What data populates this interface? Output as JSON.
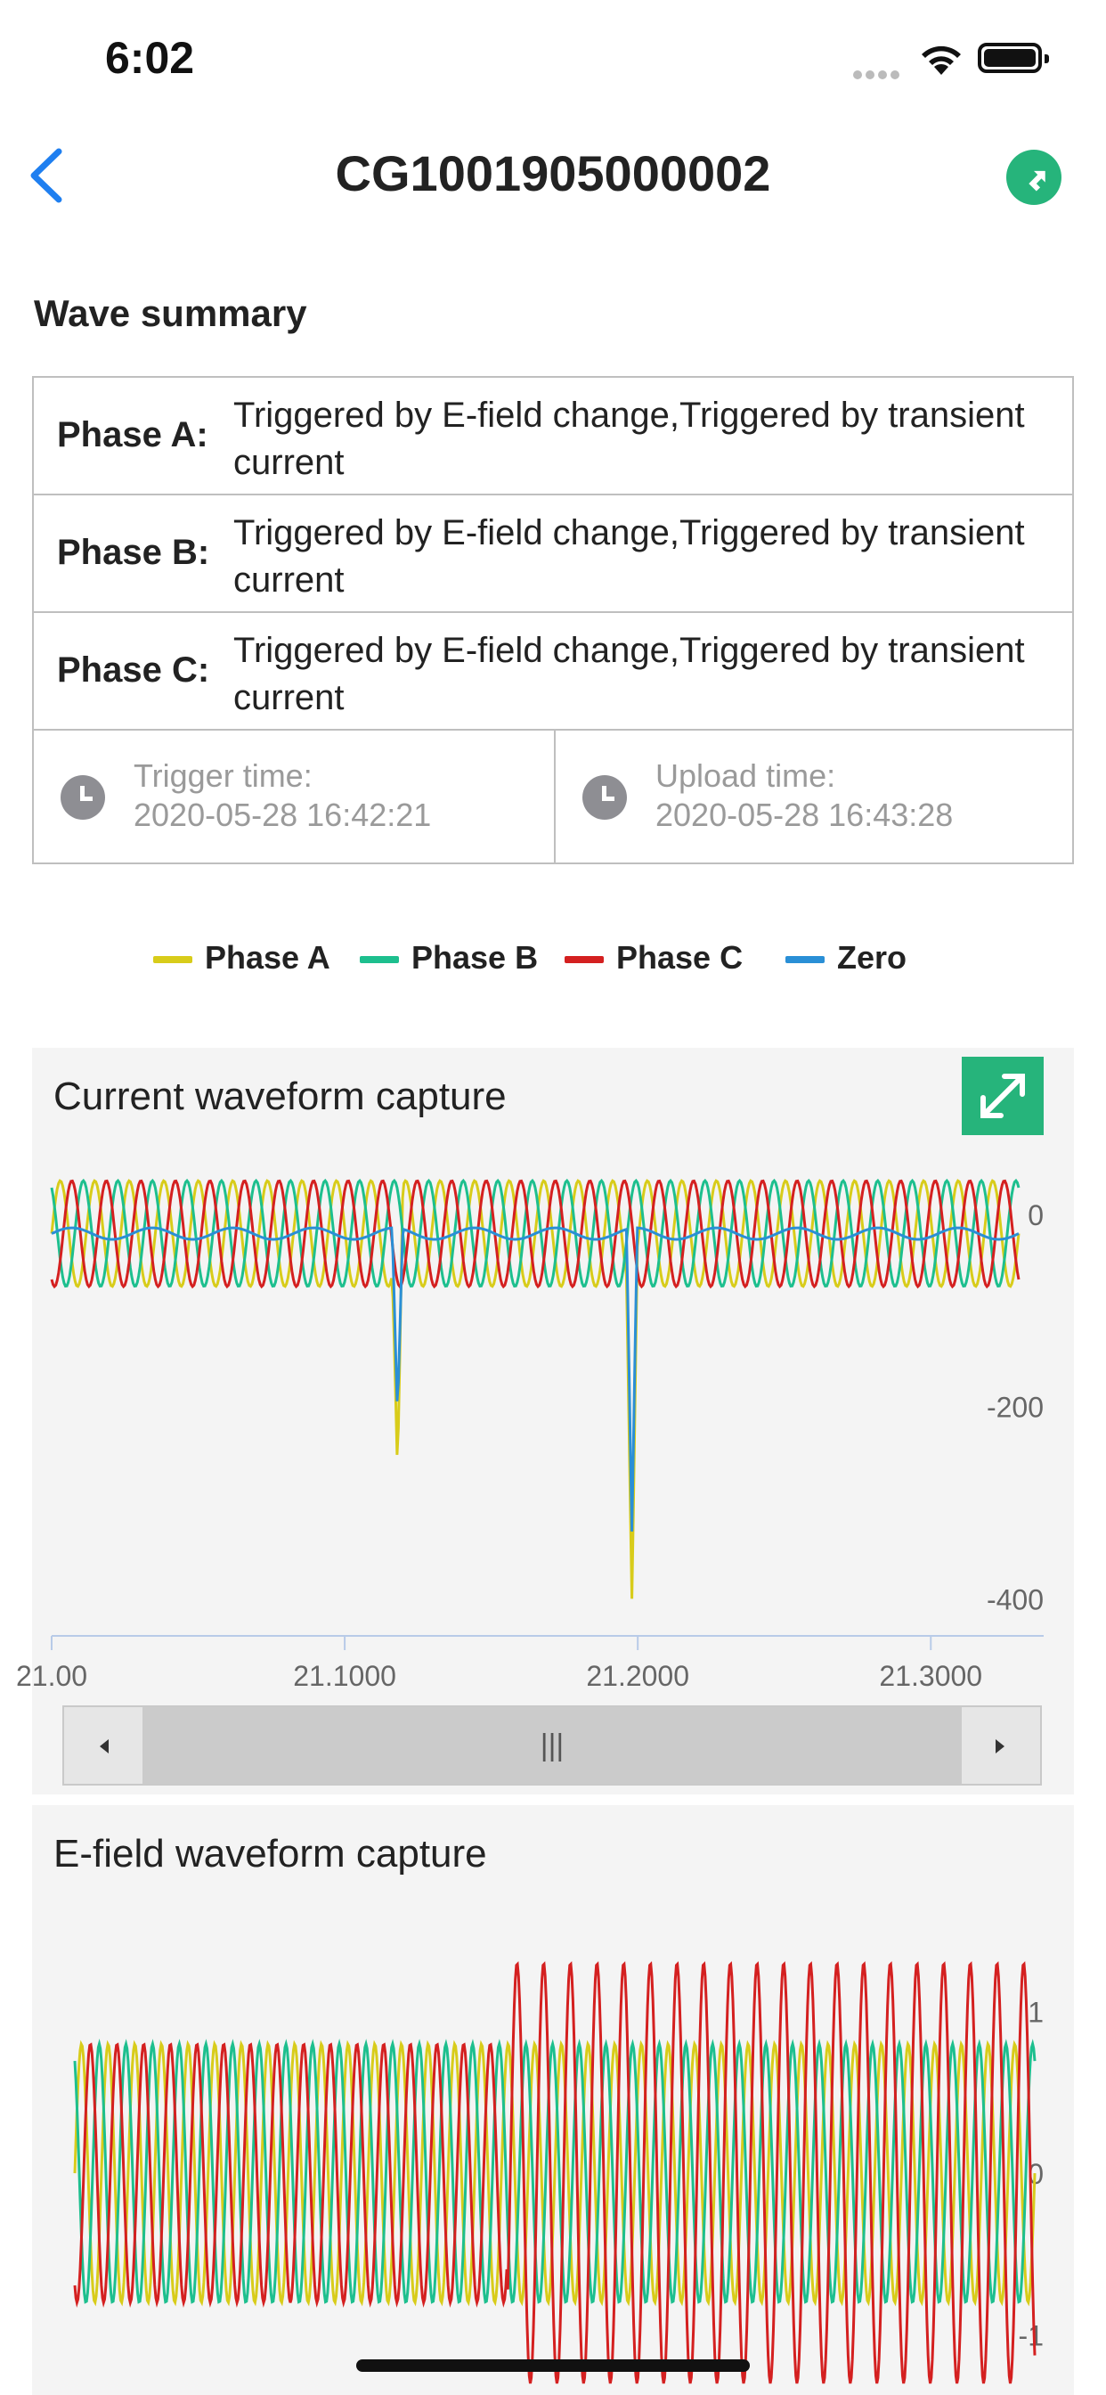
{
  "status_bar": {
    "time": "6:02"
  },
  "nav": {
    "title": "CG1001905000002",
    "back_icon": "chevron-left-icon",
    "share_icon": "share-arrow-icon"
  },
  "summary": {
    "title": "Wave summary",
    "rows": [
      {
        "label": "Phase A:",
        "value": "Triggered by E-field change,Triggered by transient current"
      },
      {
        "label": "Phase B:",
        "value": "Triggered by E-field change,Triggered by transient current"
      },
      {
        "label": "Phase C:",
        "value": "Triggered by E-field change,Triggered by transient current"
      }
    ],
    "trigger_time_label": "Trigger time:",
    "trigger_time": "2020-05-28 16:42:21",
    "upload_time_label": "Upload time:",
    "upload_time": "2020-05-28 16:43:28"
  },
  "legend": [
    {
      "name": "Phase A",
      "color": "#d8cc1a"
    },
    {
      "name": "Phase B",
      "color": "#1dbf8e"
    },
    {
      "name": "Phase C",
      "color": "#d42020"
    },
    {
      "name": "Zero",
      "color": "#2a8fd6"
    }
  ],
  "colors": {
    "accent": "#26b47b",
    "back": "#1f7ff0",
    "panel_bg": "#f4f4f4"
  },
  "chart_data": [
    {
      "type": "line",
      "title": "Current waveform capture",
      "x_ticks": [
        "21.00",
        "21.1000",
        "21.2000",
        "21.3000"
      ],
      "xlim": [
        21.0,
        21.33
      ],
      "y_ticks": [
        "0",
        "-200",
        "-400"
      ],
      "ylim": [
        -420,
        25
      ],
      "series": [
        {
          "name": "Phase A",
          "frequency_cycles": 28,
          "amplitude": 55,
          "phase": 0.0,
          "spikes": [
            {
              "x": 21.118,
              "y": -270
            },
            {
              "x": 21.198,
              "y": -400
            }
          ]
        },
        {
          "name": "Phase B",
          "frequency_cycles": 28,
          "amplitude": 55,
          "phase": 2.09
        },
        {
          "name": "Phase C",
          "frequency_cycles": 28,
          "amplitude": 55,
          "phase": 4.19
        },
        {
          "name": "Zero",
          "baseline": -20,
          "spikes": [
            {
              "x": 21.118,
              "y": -210
            },
            {
              "x": 21.198,
              "y": -330
            }
          ]
        }
      ],
      "slider": {
        "handle_icon": "grip-lines-icon"
      }
    },
    {
      "type": "line",
      "title": "E-field waveform capture",
      "y_ticks": [
        "1",
        "0",
        "-1"
      ],
      "ylim": [
        -1.25,
        1.45
      ],
      "series": [
        {
          "name": "Phase A",
          "frequency_cycles": 36,
          "amplitude": 0.8,
          "phase": 0.0
        },
        {
          "name": "Phase B",
          "frequency_cycles": 36,
          "amplitude": 0.8,
          "phase": 2.09
        },
        {
          "name": "Phase C",
          "frequency_cycles": 36,
          "amplitude": 0.8,
          "phase": 4.19,
          "growth_after": 0.45,
          "grown_amplitude": 1.3
        }
      ]
    }
  ]
}
